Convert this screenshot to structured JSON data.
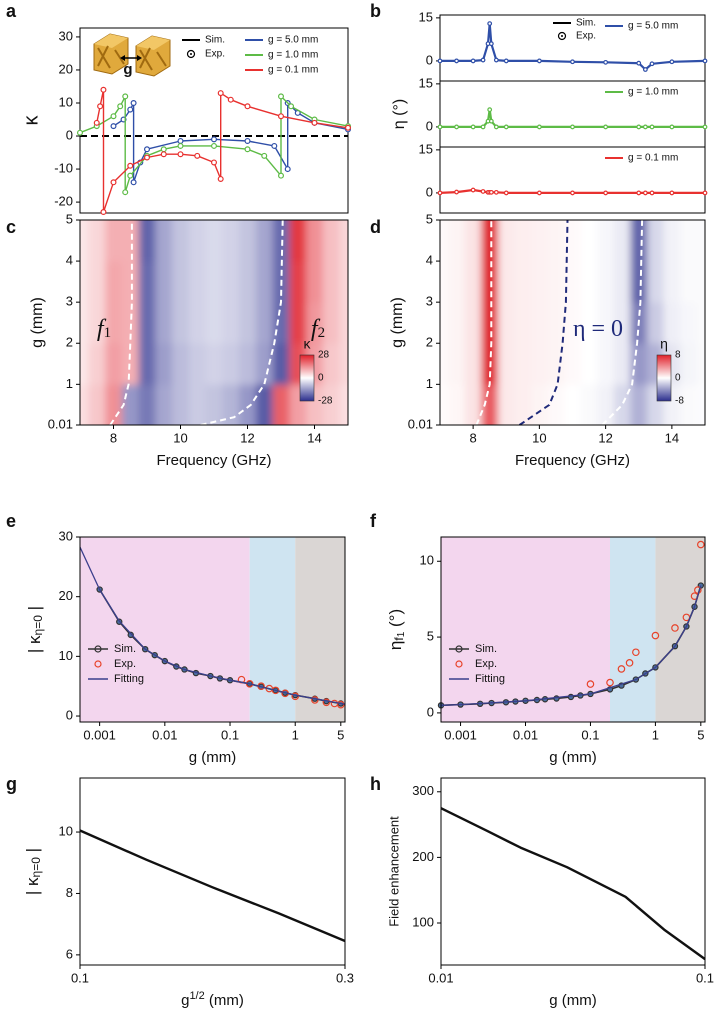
{
  "chart_data": [
    {
      "type": "line",
      "panel": "a",
      "ylabel": "κ",
      "xlim": [
        7,
        15
      ],
      "ylim": [
        -23.3,
        32.7
      ],
      "yticks": [
        -20,
        -10,
        0,
        10,
        20,
        30
      ],
      "hline": 0,
      "inset_label": "g",
      "legend_items": [
        {
          "name": "Sim.",
          "marker": "line",
          "color": "#000000"
        },
        {
          "name": "Exp.",
          "marker": "circle",
          "color": "#000000"
        }
      ],
      "series": [
        {
          "name": "g = 5.0 mm",
          "color": "#2f4fa8",
          "x": [
            8,
            8.3,
            8.5,
            8.6,
            8.6,
            8.8,
            9,
            10,
            11,
            12,
            12.8,
            13.2,
            13.2,
            13.5,
            14,
            15
          ],
          "values": [
            3,
            5,
            8,
            10,
            -14,
            -8,
            -4,
            -1.5,
            -1,
            -1.5,
            -3,
            -10,
            10,
            7,
            4,
            2
          ]
        },
        {
          "name": "g = 1.0 mm",
          "color": "#5dbb46",
          "x": [
            7,
            7.5,
            8,
            8.2,
            8.35,
            8.35,
            8.5,
            9,
            9.5,
            10,
            11,
            12,
            12.5,
            13,
            13,
            13.3,
            14,
            15
          ],
          "values": [
            1,
            3,
            6,
            9,
            12,
            -17,
            -12,
            -6,
            -4,
            -3,
            -3,
            -4,
            -6,
            -12,
            12,
            9,
            5,
            3
          ]
        },
        {
          "name": "g = 0.1 mm",
          "color": "#e8312f",
          "x": [
            7.5,
            7.6,
            7.7,
            7.7,
            8,
            8.5,
            9,
            9.5,
            10,
            10.5,
            11,
            11.2,
            11.2,
            11.5,
            12,
            13,
            14,
            15
          ],
          "values": [
            4,
            9,
            14,
            -23,
            -14,
            -9,
            -6.5,
            -5.5,
            -5.5,
            -6,
            -8,
            -13,
            13,
            11,
            9,
            6,
            4,
            2.5
          ]
        }
      ]
    },
    {
      "type": "stack",
      "panel": "b",
      "ylabel": "η (°)",
      "xlim": [
        7,
        15
      ],
      "subplots": [
        {
          "ylim": [
            -7,
            16
          ],
          "yticks": [
            0,
            15
          ],
          "legend_items": [
            {
              "name": "Sim.",
              "marker": "line",
              "color": "#000000"
            },
            {
              "name": "Exp.",
              "marker": "circle",
              "color": "#000000"
            }
          ],
          "series": [
            {
              "name": "g = 5.0 mm",
              "color": "#2f4fa8",
              "x": [
                7,
                7.5,
                8,
                8.3,
                8.45,
                8.5,
                8.55,
                8.7,
                9,
                10,
                11,
                12,
                13,
                13.2,
                13.4,
                14,
                15
              ],
              "values": [
                0,
                0,
                0,
                0.3,
                6,
                13,
                6,
                0.3,
                0,
                0,
                -0.3,
                -0.5,
                -0.8,
                -3,
                -1,
                -0.3,
                0
              ]
            }
          ]
        },
        {
          "ylim": [
            -7,
            16
          ],
          "yticks": [
            0,
            15
          ],
          "series": [
            {
              "name": "g = 1.0 mm",
              "color": "#5dbb46",
              "x": [
                7,
                7.5,
                8,
                8.3,
                8.45,
                8.5,
                8.55,
                8.7,
                9,
                10,
                11,
                12,
                13,
                13.2,
                13.4,
                14,
                15
              ],
              "values": [
                0,
                0,
                0,
                0,
                2,
                6,
                2,
                0,
                0,
                0,
                0,
                0,
                0,
                0,
                0,
                0,
                0
              ]
            }
          ]
        },
        {
          "ylim": [
            -7,
            16
          ],
          "yticks": [
            0,
            15
          ],
          "series": [
            {
              "name": "g = 0.1 mm",
              "color": "#e8312f",
              "x": [
                7,
                7.5,
                8,
                8.3,
                8.45,
                8.5,
                8.55,
                8.7,
                9,
                10,
                11,
                12,
                13,
                13.2,
                13.4,
                14,
                15
              ],
              "values": [
                0,
                0.3,
                1,
                0.5,
                0.2,
                0.2,
                0.2,
                0.2,
                0,
                0,
                0,
                0,
                0,
                0,
                0,
                0,
                0
              ]
            }
          ]
        }
      ]
    },
    {
      "type": "heatmap",
      "panel": "c",
      "xlabel": "Frequency (GHz)",
      "ylabel": "g (mm)",
      "xlim": [
        7,
        15
      ],
      "xticks": [
        8,
        10,
        12,
        14
      ],
      "ylim": [
        0.01,
        5
      ],
      "yticks": [
        0.01,
        1,
        2,
        3,
        4,
        5
      ],
      "x": [
        7,
        7.5,
        8,
        8.5,
        9,
        9.5,
        10,
        10.5,
        11,
        11.5,
        12,
        12.5,
        13,
        13.5,
        14,
        14.5,
        15
      ],
      "y": [
        0.5,
        1.5,
        2.5,
        3.5,
        4.5
      ],
      "z": [
        [
          4,
          7,
          14,
          -14,
          -18,
          -12,
          -9,
          -7,
          -8,
          -10,
          -14,
          -22,
          20,
          12,
          8,
          6,
          4
        ],
        [
          3,
          6,
          12,
          10,
          -20,
          -13,
          -9,
          -7,
          -6,
          -7,
          -9,
          -13,
          -22,
          22,
          12,
          7,
          5
        ],
        [
          3,
          5,
          11,
          10,
          -20,
          -12,
          -8,
          -6,
          -5,
          -6,
          -8,
          -12,
          -20,
          24,
          13,
          8,
          5
        ],
        [
          3,
          5,
          11,
          10,
          -20,
          -12,
          -8,
          -6,
          -5,
          -6,
          -8,
          -12,
          -20,
          24,
          14,
          8,
          5
        ],
        [
          3,
          5,
          10,
          10,
          -21,
          -12,
          -8,
          -6,
          -5,
          -6,
          -8,
          -12,
          -20,
          25,
          14,
          8,
          5
        ]
      ],
      "clim": [
        -28,
        28
      ],
      "colormap": [
        "#2c2f8e",
        "#ffffff",
        "#e0202a"
      ],
      "colorbar_label": "κ",
      "cbar_ticks": [
        28,
        0,
        -28
      ],
      "curves": [
        {
          "color": "#ffffff",
          "x": [
            7.9,
            8.3,
            8.45,
            8.5,
            8.55,
            8.55
          ],
          "y": [
            0.01,
            0.5,
            1,
            2,
            3,
            5
          ]
        },
        {
          "color": "#ffffff",
          "x": [
            10.6,
            11.6,
            12.1,
            12.5,
            12.8,
            13,
            13.05
          ],
          "y": [
            0.01,
            0.2,
            0.5,
            1,
            2,
            3,
            5
          ]
        }
      ],
      "annotations": [
        {
          "text": "f",
          "subscript": "1"
        },
        {
          "text": "f",
          "subscript": "2"
        }
      ]
    },
    {
      "type": "heatmap",
      "panel": "d",
      "xlabel": "Frequency (GHz)",
      "ylabel": "g (mm)",
      "xlim": [
        7,
        15
      ],
      "xticks": [
        8,
        10,
        12,
        14
      ],
      "ylim": [
        0.01,
        5
      ],
      "yticks": [
        0.01,
        1,
        2,
        3,
        4,
        5
      ],
      "x": [
        7,
        7.5,
        8,
        8.5,
        9,
        9.5,
        10,
        10.5,
        11,
        11.5,
        12,
        12.5,
        13,
        13.5,
        14,
        14.5,
        15
      ],
      "y": [
        0.5,
        1.5,
        2.5,
        3.5,
        4.5
      ],
      "z": [
        [
          0.1,
          0.3,
          1,
          6,
          0.8,
          0.6,
          0.4,
          0.2,
          0,
          -0.2,
          -0.5,
          -1.5,
          -3,
          -1.5,
          -0.5,
          -0.2,
          -0.1
        ],
        [
          0.2,
          0.4,
          1,
          8,
          0.8,
          0.6,
          0.5,
          0.4,
          0.2,
          0,
          -0.3,
          -0.8,
          -4,
          -3,
          -1,
          -0.4,
          -0.2
        ],
        [
          0.2,
          0.4,
          1,
          8,
          0.8,
          0.6,
          0.5,
          0.4,
          0.2,
          0,
          -0.3,
          -0.8,
          -5,
          -2,
          -0.6,
          -0.3,
          -0.2
        ],
        [
          0.2,
          0.4,
          1,
          8,
          0.8,
          0.6,
          0.5,
          0.4,
          0.2,
          0,
          -0.3,
          -0.8,
          -6,
          -1.5,
          -0.5,
          -0.2,
          -0.2
        ],
        [
          0.2,
          0.4,
          1,
          8,
          0.8,
          0.6,
          0.5,
          0.4,
          0.2,
          0,
          -0.3,
          -0.8,
          -6,
          -1.5,
          -0.5,
          -0.2,
          -0.2
        ]
      ],
      "clim": [
        -8,
        8
      ],
      "colormap": [
        "#2c2f8e",
        "#ffffff",
        "#e0202a"
      ],
      "colorbar_label": "η",
      "cbar_ticks": [
        8,
        0,
        -8
      ],
      "curves": [
        {
          "color": "#ffffff",
          "x": [
            8.1,
            8.35,
            8.5,
            8.55,
            8.55,
            8.55
          ],
          "y": [
            0.01,
            0.5,
            1,
            2,
            3,
            5
          ]
        },
        {
          "color": "#ffffff",
          "x": [
            11.9,
            12.5,
            12.8,
            12.95,
            13.05,
            13.1
          ],
          "y": [
            0.01,
            0.5,
            1,
            2,
            3,
            5
          ]
        },
        {
          "color": "#1f2a7a",
          "x": [
            9.4,
            10.3,
            10.55,
            10.7,
            10.8,
            10.85
          ],
          "y": [
            0.01,
            0.5,
            1,
            2,
            3,
            5
          ]
        }
      ],
      "annotations": [
        {
          "text": "η = 0"
        }
      ]
    },
    {
      "type": "fit",
      "panel": "e",
      "xlabel": "g (mm)",
      "ylabel": {
        "text": "| κ",
        "subscript": "η=0",
        "suffix": " |"
      },
      "log_x": true,
      "xlim": [
        0.0005,
        5.8
      ],
      "xticks": [
        0.001,
        0.01,
        0.1,
        1,
        5
      ],
      "ylim": [
        -1,
        30
      ],
      "yticks": [
        0,
        10,
        20,
        30
      ],
      "bands": [
        {
          "from": 0.0005,
          "to": 0.2,
          "color": "#f3d6ee"
        },
        {
          "from": 0.2,
          "to": 1,
          "color": "#cfe4f1"
        },
        {
          "from": 1,
          "to": 5.8,
          "color": "#dad6d4"
        }
      ],
      "series": [
        {
          "name": "Sim.",
          "style": "line+circle",
          "color": "#333333",
          "x": [
            0.001,
            0.002,
            0.003,
            0.005,
            0.007,
            0.01,
            0.015,
            0.02,
            0.03,
            0.05,
            0.07,
            0.1,
            0.2,
            0.3,
            0.5,
            0.7,
            1,
            2,
            3,
            5
          ],
          "values": [
            21.2,
            15.8,
            13.6,
            11.2,
            10.2,
            9.2,
            8.3,
            7.8,
            7.2,
            6.7,
            6.3,
            6.0,
            5.4,
            4.9,
            4.3,
            3.9,
            3.5,
            2.9,
            2.5,
            2.1
          ]
        },
        {
          "name": "Exp.",
          "style": "circle",
          "color": "#e8432a",
          "x": [
            0.15,
            0.2,
            0.3,
            0.4,
            0.5,
            0.7,
            1,
            2,
            3,
            4,
            5
          ],
          "values": [
            6.1,
            5.4,
            5.0,
            4.6,
            4.3,
            3.8,
            3.3,
            2.7,
            2.3,
            2.1,
            1.9
          ]
        },
        {
          "name": "Fitting",
          "style": "line",
          "color": "#3b3f8c",
          "x": [
            0.0005,
            0.001,
            0.002,
            0.005,
            0.01,
            0.02,
            0.05,
            0.1,
            0.2,
            0.5,
            1,
            2,
            5,
            5.8
          ],
          "values": [
            28.3,
            21.2,
            15.9,
            11.2,
            9.2,
            7.8,
            6.7,
            6.0,
            5.4,
            4.3,
            3.5,
            2.9,
            2.1,
            2.0
          ]
        }
      ]
    },
    {
      "type": "fit",
      "panel": "f",
      "xlabel": "g (mm)",
      "ylabel": {
        "text": "η",
        "subscript": "f",
        "subsubscript": "1",
        "suffix": " (°)"
      },
      "log_x": true,
      "xlim": [
        0.0005,
        5.8
      ],
      "xticks": [
        0.001,
        0.01,
        0.1,
        1,
        5
      ],
      "ylim": [
        -0.6,
        11.6
      ],
      "yticks": [
        0,
        5,
        10
      ],
      "bands": [
        {
          "from": 0.0005,
          "to": 0.2,
          "color": "#f3d6ee"
        },
        {
          "from": 0.2,
          "to": 1,
          "color": "#cfe4f1"
        },
        {
          "from": 1,
          "to": 5.8,
          "color": "#dad6d4"
        }
      ],
      "series": [
        {
          "name": "Sim.",
          "style": "line+circle",
          "color": "#333333",
          "x": [
            0.0005,
            0.001,
            0.002,
            0.003,
            0.005,
            0.007,
            0.01,
            0.015,
            0.02,
            0.03,
            0.05,
            0.07,
            0.1,
            0.2,
            0.3,
            0.5,
            0.7,
            1,
            2,
            3,
            4,
            5
          ],
          "values": [
            0.5,
            0.55,
            0.6,
            0.65,
            0.7,
            0.75,
            0.8,
            0.85,
            0.9,
            0.95,
            1.05,
            1.15,
            1.25,
            1.55,
            1.8,
            2.2,
            2.6,
            3.0,
            4.4,
            5.7,
            7.0,
            8.4
          ]
        },
        {
          "name": "Exp.",
          "style": "circle",
          "color": "#e8432a",
          "x": [
            0.1,
            0.2,
            0.3,
            0.4,
            0.5,
            1,
            2,
            3,
            4,
            4.5,
            5
          ],
          "values": [
            1.9,
            2.0,
            2.9,
            3.3,
            4.0,
            5.1,
            5.6,
            6.3,
            7.7,
            8.1,
            11.1
          ]
        },
        {
          "name": "Fitting",
          "style": "line",
          "color": "#3b3f8c",
          "x": [
            0.0005,
            0.001,
            0.01,
            0.1,
            0.5,
            1,
            2,
            3,
            4,
            5
          ],
          "values": [
            0.5,
            0.55,
            0.8,
            1.25,
            2.2,
            3.0,
            4.4,
            5.7,
            7.0,
            8.4
          ]
        }
      ]
    },
    {
      "type": "curve",
      "panel": "g",
      "xlabel": {
        "text": "g",
        "superscript": "1/2",
        "suffix": " (mm)"
      },
      "ylabel": {
        "text": "| κ",
        "subscript": "η=0",
        "suffix": " |"
      },
      "xlim": [
        0.1,
        0.3
      ],
      "xticks": [
        0.1,
        0.3
      ],
      "ylim": [
        5.67,
        11.76
      ],
      "yticks": [
        6,
        8,
        10
      ],
      "series": [
        {
          "color": "#111111",
          "x": [
            0.1,
            0.15,
            0.2,
            0.25,
            0.3
          ],
          "values": [
            10.05,
            9.1,
            8.2,
            7.35,
            6.45
          ]
        }
      ]
    },
    {
      "type": "curve",
      "panel": "h",
      "xlabel": "g (mm)",
      "ylabel": "Field enhancement",
      "log_x": true,
      "xlim": [
        0.01,
        0.1
      ],
      "xticks": [
        0.01,
        0.1
      ],
      "ylim": [
        36,
        321
      ],
      "yticks": [
        100,
        200,
        300
      ],
      "series": [
        {
          "color": "#111111",
          "x": [
            0.01,
            0.015,
            0.02,
            0.03,
            0.05,
            0.07,
            0.1
          ],
          "values": [
            275,
            240,
            215,
            185,
            140,
            90,
            45
          ]
        }
      ]
    }
  ]
}
